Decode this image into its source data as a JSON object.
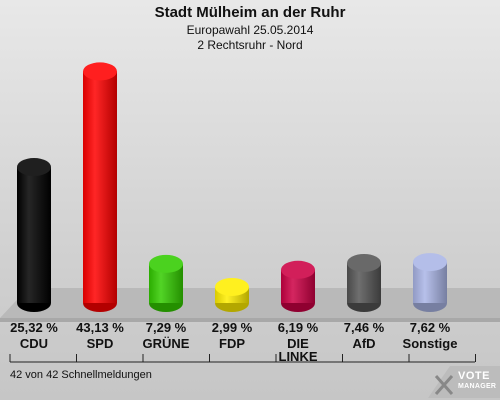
{
  "chart_data": {
    "type": "bar",
    "title": "Stadt Mülheim an der Ruhr",
    "subtitle1": "Europawahl 25.05.2014",
    "subtitle2": "2 Rechtsruhr - Nord",
    "categories": [
      "CDU",
      "SPD",
      "GRÜNE",
      "FDP",
      "DIE LINKE",
      "AfD",
      "Sonstige"
    ],
    "values": [
      25.32,
      43.13,
      7.29,
      2.99,
      6.19,
      7.46,
      7.62
    ],
    "value_labels": [
      "25,32 %",
      "43,13 %",
      "7,29 %",
      "2,99 %",
      "6,19 %",
      "7,46 %",
      "7,62 %"
    ],
    "colors": [
      "#000000",
      "#ff0000",
      "#33cc00",
      "#ffee00",
      "#cc0044",
      "#555555",
      "#aab5e6"
    ],
    "ylim": [
      0,
      45
    ],
    "grid": false,
    "legend": "none"
  },
  "footnote": "42 von 42 Schnellmeldungen",
  "logo": {
    "line1": "VOTE",
    "line2": "MANAGER",
    "icon": "vote-manager-logo-icon"
  }
}
